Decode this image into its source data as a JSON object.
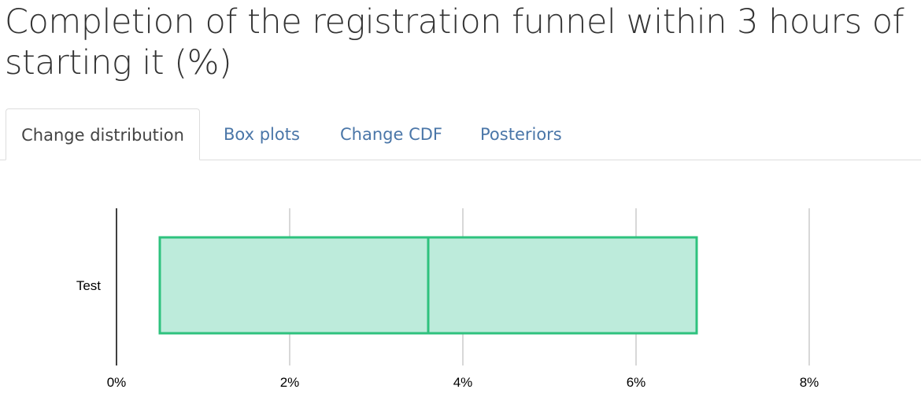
{
  "page": {
    "title": "Completion of the registration funnel within 3 hours of starting it (%)"
  },
  "tabs": [
    {
      "label": "Change distribution",
      "active": true
    },
    {
      "label": "Box plots",
      "active": false
    },
    {
      "label": "Change CDF",
      "active": false
    },
    {
      "label": "Posteriors",
      "active": false
    }
  ],
  "colors": {
    "box_fill": "#bdebdb",
    "box_stroke": "#2ec27e",
    "grid": "#cccccc",
    "axis": "#000000",
    "active_tab_text": "#444444",
    "tab_link": "#4a76a8"
  },
  "chart_data": {
    "type": "box",
    "orientation": "horizontal",
    "categories": [
      "Test"
    ],
    "series": [
      {
        "name": "Test",
        "low": 0.5,
        "median": 3.6,
        "high": 6.7
      }
    ],
    "x_ticks": [
      "0%",
      "2%",
      "4%",
      "6%",
      "8%"
    ],
    "xlim": [
      0,
      8
    ],
    "grid": true
  }
}
